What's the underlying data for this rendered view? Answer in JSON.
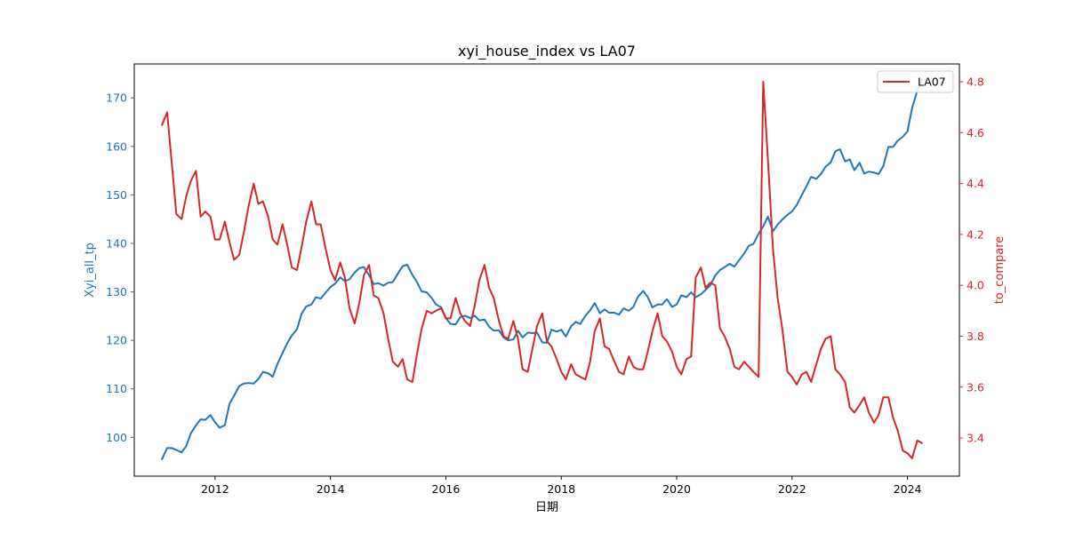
{
  "chart_data": {
    "type": "line",
    "title": "xyi_house_index vs LA07",
    "xlabel": "日期",
    "ylabel_left": "Xyi_all_tp",
    "ylabel_right": "to_compare",
    "xlim": [
      2010.6,
      2024.9
    ],
    "ylim_left": [
      92,
      177
    ],
    "ylim_right": [
      3.25,
      4.87
    ],
    "x_ticks": [
      2012,
      2014,
      2016,
      2018,
      2020,
      2022,
      2024
    ],
    "y_left_ticks": [
      100,
      110,
      120,
      130,
      140,
      150,
      160,
      170
    ],
    "y_right_ticks": [
      3.4,
      3.6,
      3.8,
      4.0,
      4.2,
      4.4,
      4.6,
      4.8
    ],
    "grid": false,
    "legend": {
      "location": "upper right",
      "entries": [
        "LA07"
      ]
    },
    "colors": {
      "left": "#1f77b4",
      "right": "#d62728"
    },
    "series": [
      {
        "axis": "left",
        "color": "#1f77b4",
        "x": [
          2011.08,
          2011.17,
          2011.25,
          2011.33,
          2011.42,
          2011.5,
          2011.58,
          2011.67,
          2011.75,
          2011.83,
          2011.92,
          2012.0,
          2012.08,
          2012.17,
          2012.25,
          2012.33,
          2012.42,
          2012.5,
          2012.58,
          2012.67,
          2012.75,
          2012.83,
          2012.92,
          2013.0,
          2013.08,
          2013.17,
          2013.25,
          2013.33,
          2013.42,
          2013.5,
          2013.58,
          2013.67,
          2013.75,
          2013.83,
          2013.92,
          2014.0,
          2014.08,
          2014.17,
          2014.25,
          2014.33,
          2014.42,
          2014.5,
          2014.58,
          2014.67,
          2014.75,
          2014.83,
          2014.92,
          2015.0,
          2015.08,
          2015.17,
          2015.25,
          2015.33,
          2015.42,
          2015.5,
          2015.58,
          2015.67,
          2015.75,
          2015.83,
          2015.92,
          2016.0,
          2016.08,
          2016.17,
          2016.25,
          2016.33,
          2016.42,
          2016.5,
          2016.58,
          2016.67,
          2016.75,
          2016.83,
          2016.92,
          2017.0,
          2017.08,
          2017.17,
          2017.25,
          2017.33,
          2017.42,
          2017.5,
          2017.58,
          2017.67,
          2017.75,
          2017.83,
          2017.92,
          2018.0,
          2018.08,
          2018.17,
          2018.25,
          2018.33,
          2018.42,
          2018.5,
          2018.58,
          2018.67,
          2018.75,
          2018.83,
          2018.92,
          2019.0,
          2019.08,
          2019.17,
          2019.25,
          2019.33,
          2019.42,
          2019.5,
          2019.58,
          2019.67,
          2019.75,
          2019.83,
          2019.92,
          2020.0,
          2020.08,
          2020.17,
          2020.25,
          2020.33,
          2020.42,
          2020.5,
          2020.58,
          2020.67,
          2020.75,
          2020.83,
          2020.92,
          2021.0,
          2021.08,
          2021.17,
          2021.25,
          2021.33,
          2021.42,
          2021.5,
          2021.58,
          2021.67,
          2021.75,
          2021.83,
          2021.92,
          2022.0,
          2022.08,
          2022.17,
          2022.25,
          2022.33,
          2022.42,
          2022.5,
          2022.58,
          2022.67,
          2022.75,
          2022.83,
          2022.92,
          2023.0,
          2023.08,
          2023.17,
          2023.25,
          2023.33,
          2023.42,
          2023.5,
          2023.58,
          2023.67,
          2023.75,
          2023.83,
          2023.92,
          2024.0,
          2024.08,
          2024.17,
          2024.25
        ],
        "y": [
          95.5,
          97.8,
          97.8,
          97.4,
          96.9,
          98.2,
          100.8,
          102.5,
          103.7,
          103.6,
          104.6,
          103.1,
          102.0,
          102.5,
          106.9,
          108.6,
          110.6,
          111.1,
          111.2,
          111.1,
          112.0,
          113.5,
          113.2,
          112.5,
          115.1,
          117.4,
          119.4,
          121.0,
          122.3,
          125.5,
          127.0,
          127.4,
          128.9,
          128.6,
          129.9,
          131.0,
          131.7,
          133.0,
          132.2,
          132.6,
          134.0,
          134.9,
          135.1,
          133.4,
          131.6,
          131.8,
          131.3,
          131.9,
          132.0,
          133.8,
          135.3,
          135.6,
          133.5,
          132.0,
          130.1,
          129.9,
          128.8,
          127.4,
          126.8,
          124.6,
          123.4,
          123.3,
          124.8,
          125.1,
          124.6,
          125.1,
          124.1,
          124.3,
          122.8,
          122.0,
          122.1,
          120.6,
          120.0,
          120.2,
          122.0,
          120.6,
          121.6,
          121.5,
          121.6,
          119.6,
          119.5,
          122.2,
          121.8,
          122.2,
          120.8,
          122.9,
          123.8,
          123.4,
          125.1,
          126.2,
          127.7,
          125.6,
          126.4,
          125.7,
          125.7,
          125.3,
          126.6,
          126.1,
          126.9,
          129.0,
          130.2,
          128.9,
          126.8,
          127.4,
          127.4,
          128.5,
          126.9,
          127.4,
          129.3,
          128.9,
          129.9,
          128.9,
          129.5,
          130.4,
          131.3,
          133.4,
          134.5,
          135.1,
          135.8,
          135.2,
          136.5,
          137.9,
          139.5,
          139.9,
          142.0,
          143.5,
          145.5,
          142.5,
          143.9,
          144.9,
          145.9,
          146.6,
          147.9,
          150.0,
          151.8,
          153.7,
          153.3,
          154.3,
          155.8,
          156.7,
          159.0,
          159.4,
          156.9,
          157.3,
          155.1,
          156.6,
          154.4,
          154.8,
          154.6,
          154.3,
          155.9,
          159.9,
          159.9,
          161.2,
          162.0,
          163.1,
          167.9,
          171.5,
          173.8
        ]
      },
      {
        "name": "LA07",
        "axis": "right",
        "color": "#d62728",
        "x": [
          2011.08,
          2011.17,
          2011.25,
          2011.33,
          2011.42,
          2011.5,
          2011.58,
          2011.67,
          2011.75,
          2011.83,
          2011.92,
          2012.0,
          2012.08,
          2012.17,
          2012.25,
          2012.33,
          2012.42,
          2012.5,
          2012.58,
          2012.67,
          2012.75,
          2012.83,
          2012.92,
          2013.0,
          2013.08,
          2013.17,
          2013.25,
          2013.33,
          2013.42,
          2013.5,
          2013.58,
          2013.67,
          2013.75,
          2013.83,
          2013.92,
          2014.0,
          2014.08,
          2014.17,
          2014.25,
          2014.33,
          2014.42,
          2014.5,
          2014.58,
          2014.67,
          2014.75,
          2014.83,
          2014.92,
          2015.0,
          2015.08,
          2015.17,
          2015.25,
          2015.33,
          2015.42,
          2015.5,
          2015.58,
          2015.67,
          2015.75,
          2015.83,
          2015.92,
          2016.0,
          2016.08,
          2016.17,
          2016.25,
          2016.33,
          2016.42,
          2016.5,
          2016.58,
          2016.67,
          2016.75,
          2016.83,
          2016.92,
          2017.0,
          2017.08,
          2017.17,
          2017.25,
          2017.33,
          2017.42,
          2017.5,
          2017.58,
          2017.67,
          2017.75,
          2017.83,
          2017.92,
          2018.0,
          2018.08,
          2018.17,
          2018.25,
          2018.33,
          2018.42,
          2018.5,
          2018.58,
          2018.67,
          2018.75,
          2018.83,
          2018.92,
          2019.0,
          2019.08,
          2019.17,
          2019.25,
          2019.33,
          2019.42,
          2019.5,
          2019.58,
          2019.67,
          2019.75,
          2019.83,
          2019.92,
          2020.0,
          2020.08,
          2020.17,
          2020.25,
          2020.33,
          2020.42,
          2020.5,
          2020.58,
          2020.67,
          2020.75,
          2020.83,
          2020.92,
          2021.0,
          2021.08,
          2021.17,
          2021.25,
          2021.33,
          2021.42,
          2021.5,
          2021.58,
          2021.67,
          2021.75,
          2021.83,
          2021.92,
          2022.0,
          2022.08,
          2022.17,
          2022.25,
          2022.33,
          2022.42,
          2022.5,
          2022.58,
          2022.67,
          2022.75,
          2022.83,
          2022.92,
          2023.0,
          2023.08,
          2023.17,
          2023.25,
          2023.33,
          2023.42,
          2023.5,
          2023.58,
          2023.67,
          2023.75,
          2023.83,
          2023.92,
          2024.0,
          2024.08,
          2024.17,
          2024.25
        ],
        "y": [
          4.63,
          4.68,
          4.48,
          4.28,
          4.26,
          4.35,
          4.41,
          4.45,
          4.27,
          4.29,
          4.27,
          4.18,
          4.18,
          4.25,
          4.17,
          4.1,
          4.12,
          4.21,
          4.31,
          4.4,
          4.32,
          4.33,
          4.27,
          4.18,
          4.16,
          4.24,
          4.16,
          4.07,
          4.06,
          4.15,
          4.25,
          4.33,
          4.24,
          4.24,
          4.14,
          4.06,
          4.02,
          4.09,
          4.03,
          3.91,
          3.85,
          3.93,
          4.04,
          4.08,
          3.96,
          3.95,
          3.89,
          3.79,
          3.7,
          3.68,
          3.71,
          3.63,
          3.62,
          3.73,
          3.83,
          3.9,
          3.89,
          3.9,
          3.91,
          3.87,
          3.87,
          3.95,
          3.89,
          3.86,
          3.84,
          3.92,
          4.02,
          4.08,
          3.99,
          3.95,
          3.86,
          3.8,
          3.79,
          3.86,
          3.79,
          3.67,
          3.66,
          3.75,
          3.84,
          3.89,
          3.78,
          3.76,
          3.71,
          3.66,
          3.63,
          3.69,
          3.65,
          3.64,
          3.63,
          3.7,
          3.82,
          3.87,
          3.76,
          3.75,
          3.7,
          3.66,
          3.65,
          3.72,
          3.68,
          3.67,
          3.67,
          3.74,
          3.82,
          3.89,
          3.8,
          3.78,
          3.74,
          3.68,
          3.65,
          3.71,
          3.72,
          4.03,
          4.07,
          3.99,
          4.01,
          4.0,
          3.83,
          3.8,
          3.75,
          3.68,
          3.67,
          3.7,
          3.68,
          3.66,
          3.64,
          4.8,
          4.5,
          4.14,
          3.95,
          3.83,
          3.66,
          3.64,
          3.61,
          3.65,
          3.66,
          3.62,
          3.69,
          3.75,
          3.79,
          3.8,
          3.67,
          3.65,
          3.62,
          3.52,
          3.5,
          3.53,
          3.56,
          3.5,
          3.46,
          3.49,
          3.56,
          3.56,
          3.48,
          3.43,
          3.35,
          3.34,
          3.32,
          3.39,
          3.38
        ]
      }
    ]
  }
}
